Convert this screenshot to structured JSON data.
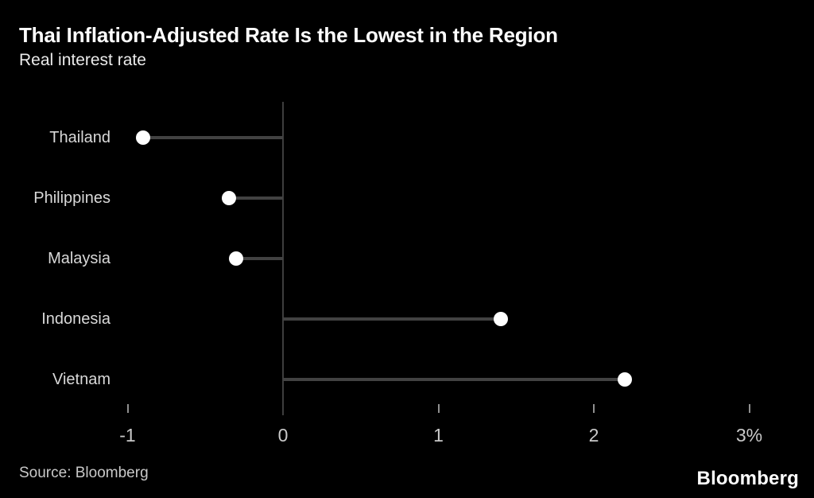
{
  "header": {
    "title": "Thai Inflation-Adjusted Rate Is the Lowest in the Region",
    "subtitle": "Real interest rate"
  },
  "footer": {
    "source": "Source: Bloomberg",
    "brand": "Bloomberg"
  },
  "colors": {
    "background": "#000000",
    "title_text": "#ffffff",
    "category_text": "#d9d9d9",
    "tick_text": "#c9c9c9",
    "dot": "#ffffff",
    "stem": "#424242",
    "axis": "#3d3d3d",
    "tick_mark": "#8f8f8f"
  },
  "chart_data": {
    "type": "scatter",
    "variant": "lollipop-dot-plot",
    "title": "Thai Inflation-Adjusted Rate Is the Lowest in the Region",
    "subtitle": "Real interest rate",
    "categories": [
      "Thailand",
      "Philippines",
      "Malaysia",
      "Indonesia",
      "Vietnam"
    ],
    "values": [
      -0.9,
      -0.35,
      -0.3,
      1.4,
      2.2
    ],
    "xlabel": "",
    "ylabel": "",
    "xlim": [
      -1,
      3
    ],
    "baseline": 0,
    "grid": false,
    "legend": false,
    "x_ticks": [
      {
        "value": -1,
        "label": "-1"
      },
      {
        "value": 0,
        "label": "0"
      },
      {
        "value": 1,
        "label": "1"
      },
      {
        "value": 2,
        "label": "2"
      },
      {
        "value": 3,
        "label": "3%"
      }
    ]
  }
}
